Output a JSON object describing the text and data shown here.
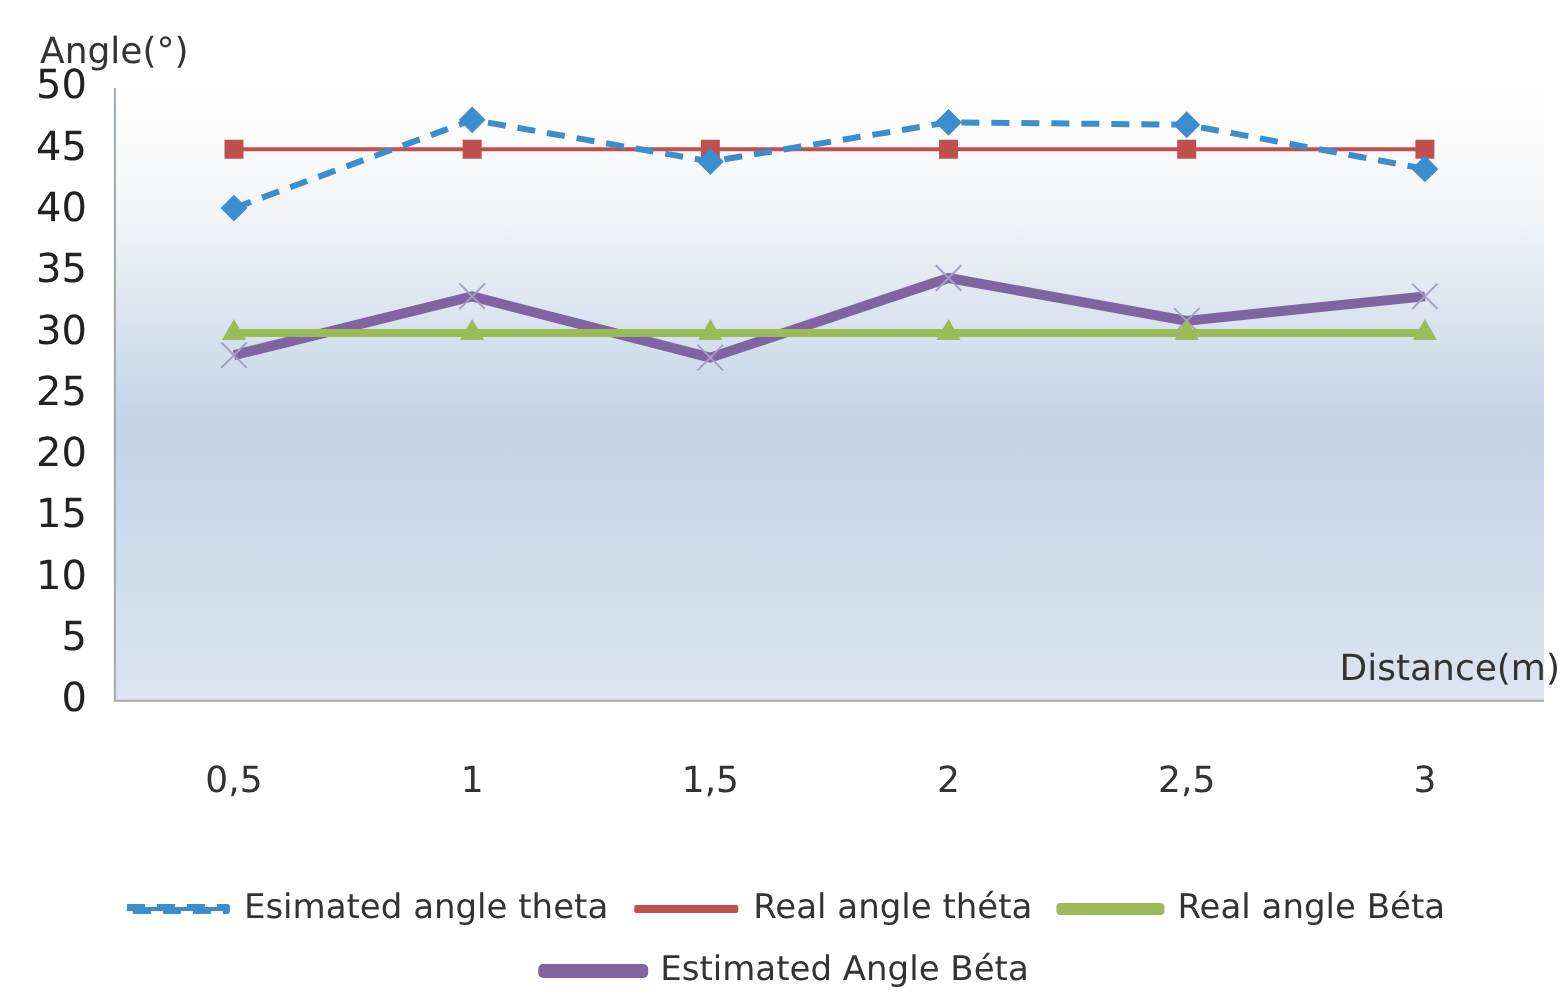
{
  "chart_data": {
    "type": "line",
    "xlabel": "Distance(m)",
    "ylabel": "Angle(°)",
    "categories": [
      "0,5",
      "1",
      "1,5",
      "2",
      "2,5",
      "3"
    ],
    "ylim": [
      0,
      50
    ],
    "yticks": [
      0,
      5,
      10,
      15,
      20,
      25,
      30,
      35,
      40,
      45,
      50
    ],
    "grid": false,
    "legend": "bottom",
    "series": [
      {
        "name": "Esimated angle theta",
        "color": "#3c8dcd",
        "values": [
          40.2,
          47.4,
          44,
          47.2,
          47,
          43.4
        ],
        "marker": "diamond",
        "line_style": "dashed"
      },
      {
        "name": "Real angle théta",
        "color": "#c0504d",
        "values": [
          45,
          45,
          45,
          45,
          45,
          45
        ],
        "marker": "square",
        "line_style": "solid"
      },
      {
        "name": "Real angle Béta",
        "color": "#9bbb59",
        "values": [
          30,
          30,
          30,
          30,
          30,
          30
        ],
        "marker": "triangle",
        "line_style": "solid"
      },
      {
        "name": "Estimated Angle Béta",
        "color": "#8064a2",
        "values": [
          28.2,
          33,
          28,
          34.5,
          31,
          33
        ],
        "marker": "cross",
        "line_style": "solid"
      }
    ]
  }
}
